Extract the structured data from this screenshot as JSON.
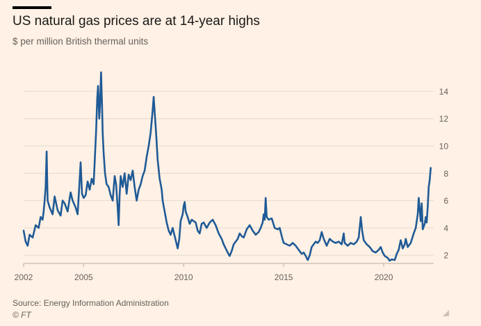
{
  "header": {
    "title": "US natural gas prices are at 14-year highs",
    "subtitle": "$ per million British thermal units"
  },
  "footer": {
    "source": "Source: Energy Information Administration",
    "credit": "© FT"
  },
  "colors": {
    "background": "#fff1e5",
    "line": "#1f5a96",
    "grid": "#e6d9ce",
    "axis": "#66605c",
    "text": "#1a1817"
  },
  "chart_data": {
    "type": "line",
    "title": "US natural gas prices are at 14-year highs",
    "subtitle": "$ per million British thermal units",
    "xlabel": "",
    "ylabel": "",
    "xlim": [
      2002.0,
      2022.5
    ],
    "ylim": [
      1.4,
      15.6
    ],
    "x_ticks": [
      2002,
      2005,
      2010,
      2015,
      2020
    ],
    "y_ticks": [
      2,
      4,
      6,
      8,
      10,
      12,
      14
    ],
    "y_axis_side": "right",
    "grid": "horizontal",
    "legend": "none",
    "series": [
      {
        "values": [
          [
            2002.0,
            3.8
          ],
          [
            2002.1,
            3.0
          ],
          [
            2002.2,
            2.7
          ],
          [
            2002.3,
            3.5
          ],
          [
            2002.45,
            3.3
          ],
          [
            2002.6,
            4.2
          ],
          [
            2002.75,
            4.0
          ],
          [
            2002.85,
            4.8
          ],
          [
            2002.95,
            4.6
          ],
          [
            2003.0,
            5.2
          ],
          [
            2003.05,
            6.0
          ],
          [
            2003.1,
            7.0
          ],
          [
            2003.15,
            9.6
          ],
          [
            2003.2,
            6.0
          ],
          [
            2003.3,
            5.5
          ],
          [
            2003.45,
            5.0
          ],
          [
            2003.55,
            6.3
          ],
          [
            2003.7,
            5.3
          ],
          [
            2003.85,
            4.9
          ],
          [
            2003.95,
            6.0
          ],
          [
            2004.05,
            5.8
          ],
          [
            2004.2,
            5.2
          ],
          [
            2004.35,
            6.6
          ],
          [
            2004.45,
            6.0
          ],
          [
            2004.6,
            5.5
          ],
          [
            2004.7,
            5.0
          ],
          [
            2004.78,
            7.0
          ],
          [
            2004.85,
            8.8
          ],
          [
            2004.92,
            6.5
          ],
          [
            2005.0,
            6.2
          ],
          [
            2005.1,
            6.4
          ],
          [
            2005.2,
            7.4
          ],
          [
            2005.3,
            6.8
          ],
          [
            2005.4,
            7.6
          ],
          [
            2005.5,
            7.2
          ],
          [
            2005.55,
            8.8
          ],
          [
            2005.62,
            11.0
          ],
          [
            2005.68,
            13.5
          ],
          [
            2005.72,
            14.4
          ],
          [
            2005.78,
            12.0
          ],
          [
            2005.82,
            13.0
          ],
          [
            2005.87,
            15.4
          ],
          [
            2005.92,
            13.0
          ],
          [
            2005.95,
            11.0
          ],
          [
            2006.0,
            9.5
          ],
          [
            2006.07,
            8.0
          ],
          [
            2006.15,
            7.2
          ],
          [
            2006.25,
            7.0
          ],
          [
            2006.35,
            6.4
          ],
          [
            2006.45,
            6.0
          ],
          [
            2006.55,
            7.8
          ],
          [
            2006.62,
            7.2
          ],
          [
            2006.7,
            5.5
          ],
          [
            2006.75,
            4.2
          ],
          [
            2006.8,
            6.4
          ],
          [
            2006.85,
            7.8
          ],
          [
            2006.95,
            7.0
          ],
          [
            2007.05,
            8.0
          ],
          [
            2007.15,
            6.5
          ],
          [
            2007.25,
            7.9
          ],
          [
            2007.35,
            7.5
          ],
          [
            2007.45,
            8.2
          ],
          [
            2007.55,
            7.0
          ],
          [
            2007.65,
            6.0
          ],
          [
            2007.75,
            6.8
          ],
          [
            2007.85,
            7.2
          ],
          [
            2007.95,
            7.8
          ],
          [
            2008.05,
            8.2
          ],
          [
            2008.15,
            9.2
          ],
          [
            2008.25,
            10.0
          ],
          [
            2008.35,
            11.0
          ],
          [
            2008.45,
            12.6
          ],
          [
            2008.5,
            13.6
          ],
          [
            2008.55,
            12.5
          ],
          [
            2008.62,
            11.0
          ],
          [
            2008.7,
            9.0
          ],
          [
            2008.8,
            7.6
          ],
          [
            2008.9,
            6.8
          ],
          [
            2008.95,
            6.0
          ],
          [
            2009.05,
            5.2
          ],
          [
            2009.15,
            4.4
          ],
          [
            2009.25,
            3.8
          ],
          [
            2009.35,
            3.5
          ],
          [
            2009.45,
            4.0
          ],
          [
            2009.55,
            3.4
          ],
          [
            2009.65,
            2.8
          ],
          [
            2009.7,
            2.5
          ],
          [
            2009.78,
            3.2
          ],
          [
            2009.85,
            4.5
          ],
          [
            2009.95,
            5.0
          ],
          [
            2010.0,
            5.6
          ],
          [
            2010.05,
            5.9
          ],
          [
            2010.1,
            5.2
          ],
          [
            2010.2,
            4.8
          ],
          [
            2010.3,
            4.3
          ],
          [
            2010.4,
            4.6
          ],
          [
            2010.5,
            4.5
          ],
          [
            2010.6,
            4.4
          ],
          [
            2010.7,
            3.8
          ],
          [
            2010.8,
            3.6
          ],
          [
            2010.9,
            4.3
          ],
          [
            2011.0,
            4.4
          ],
          [
            2011.15,
            4.0
          ],
          [
            2011.3,
            4.4
          ],
          [
            2011.45,
            4.6
          ],
          [
            2011.6,
            4.2
          ],
          [
            2011.75,
            3.6
          ],
          [
            2011.9,
            3.2
          ],
          [
            2012.0,
            2.8
          ],
          [
            2012.1,
            2.5
          ],
          [
            2012.2,
            2.2
          ],
          [
            2012.3,
            1.95
          ],
          [
            2012.4,
            2.3
          ],
          [
            2012.5,
            2.8
          ],
          [
            2012.6,
            3.0
          ],
          [
            2012.7,
            3.2
          ],
          [
            2012.8,
            3.6
          ],
          [
            2012.9,
            3.4
          ],
          [
            2013.0,
            3.3
          ],
          [
            2013.15,
            3.9
          ],
          [
            2013.3,
            4.2
          ],
          [
            2013.45,
            3.8
          ],
          [
            2013.6,
            3.5
          ],
          [
            2013.75,
            3.7
          ],
          [
            2013.85,
            4.0
          ],
          [
            2013.95,
            4.4
          ],
          [
            2014.0,
            5.0
          ],
          [
            2014.05,
            4.6
          ],
          [
            2014.1,
            6.2
          ],
          [
            2014.15,
            4.8
          ],
          [
            2014.25,
            4.6
          ],
          [
            2014.4,
            4.7
          ],
          [
            2014.55,
            4.0
          ],
          [
            2014.7,
            3.9
          ],
          [
            2014.8,
            4.0
          ],
          [
            2014.9,
            3.4
          ],
          [
            2015.0,
            2.9
          ],
          [
            2015.15,
            2.8
          ],
          [
            2015.3,
            2.7
          ],
          [
            2015.45,
            2.9
          ],
          [
            2015.6,
            2.7
          ],
          [
            2015.75,
            2.4
          ],
          [
            2015.9,
            2.1
          ],
          [
            2016.0,
            2.2
          ],
          [
            2016.1,
            1.95
          ],
          [
            2016.2,
            1.65
          ],
          [
            2016.3,
            2.0
          ],
          [
            2016.4,
            2.6
          ],
          [
            2016.5,
            2.8
          ],
          [
            2016.6,
            3.0
          ],
          [
            2016.7,
            2.9
          ],
          [
            2016.8,
            3.1
          ],
          [
            2016.9,
            3.7
          ],
          [
            2017.0,
            3.2
          ],
          [
            2017.15,
            2.7
          ],
          [
            2017.3,
            3.2
          ],
          [
            2017.45,
            3.0
          ],
          [
            2017.6,
            2.9
          ],
          [
            2017.75,
            3.0
          ],
          [
            2017.9,
            2.8
          ],
          [
            2018.0,
            3.6
          ],
          [
            2018.05,
            2.9
          ],
          [
            2018.2,
            2.7
          ],
          [
            2018.35,
            2.9
          ],
          [
            2018.5,
            2.8
          ],
          [
            2018.65,
            3.0
          ],
          [
            2018.75,
            3.3
          ],
          [
            2018.85,
            4.8
          ],
          [
            2018.92,
            3.8
          ],
          [
            2019.0,
            3.1
          ],
          [
            2019.15,
            2.8
          ],
          [
            2019.3,
            2.6
          ],
          [
            2019.45,
            2.3
          ],
          [
            2019.6,
            2.2
          ],
          [
            2019.75,
            2.4
          ],
          [
            2019.85,
            2.6
          ],
          [
            2019.95,
            2.2
          ],
          [
            2020.05,
            1.95
          ],
          [
            2020.2,
            1.8
          ],
          [
            2020.3,
            1.6
          ],
          [
            2020.4,
            1.7
          ],
          [
            2020.55,
            1.65
          ],
          [
            2020.65,
            2.1
          ],
          [
            2020.75,
            2.4
          ],
          [
            2020.85,
            3.1
          ],
          [
            2020.95,
            2.5
          ],
          [
            2021.05,
            2.8
          ],
          [
            2021.1,
            3.2
          ],
          [
            2021.2,
            2.6
          ],
          [
            2021.35,
            2.9
          ],
          [
            2021.5,
            3.6
          ],
          [
            2021.6,
            4.0
          ],
          [
            2021.7,
            5.0
          ],
          [
            2021.75,
            6.2
          ],
          [
            2021.8,
            5.3
          ],
          [
            2021.85,
            4.5
          ],
          [
            2021.9,
            5.8
          ],
          [
            2021.95,
            3.9
          ],
          [
            2022.05,
            4.3
          ],
          [
            2022.1,
            4.8
          ],
          [
            2022.15,
            4.4
          ],
          [
            2022.2,
            5.6
          ],
          [
            2022.25,
            7.0
          ],
          [
            2022.3,
            7.5
          ],
          [
            2022.35,
            8.4
          ]
        ]
      }
    ]
  }
}
